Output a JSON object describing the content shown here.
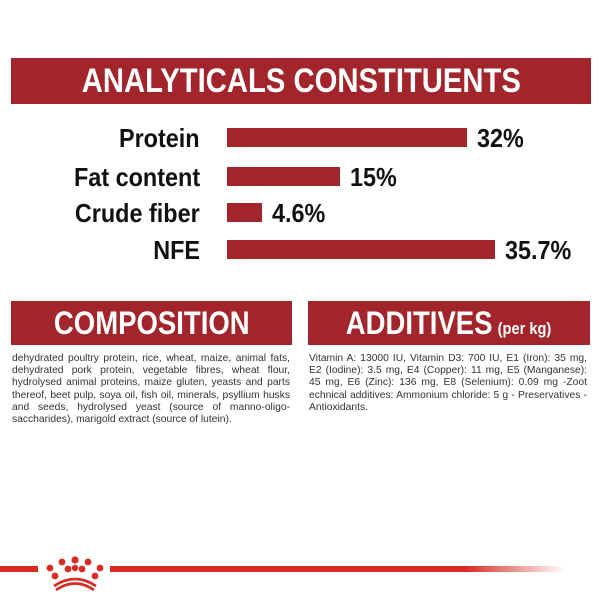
{
  "header": {
    "title": "ANALYTICALS CONSTITUENTS"
  },
  "chart_data": {
    "type": "bar",
    "orientation": "horizontal",
    "title": "ANALYTICALS CONSTITUENTS",
    "categories": [
      "Protein",
      "Fat content",
      "Crude fiber",
      "NFE"
    ],
    "values": [
      32,
      15,
      4.6,
      35.7
    ],
    "value_labels": [
      "32%",
      "15%",
      "4.6%",
      "35.7%"
    ],
    "unit": "%",
    "grid": false,
    "bar_color": "#a2252c"
  },
  "composition": {
    "title": "COMPOSITION",
    "text": "dehydrated poultry protein, rice, wheat, maize, animal fats, dehydrated pork protein, vegetable fibres, wheat flour, hydrolysed animal proteins, maize gluten, yeasts and parts thereof, beet pulp, soya oil, fish oil, minerals, psyllium husks and seeds, hydrolysed yeast (source of manno-oligo-saccharides), marigold extract (source of lutein)."
  },
  "additives": {
    "title": "ADDITIVES",
    "subtitle": "(per kg)",
    "text": "Vitamin A: 13000 IU, Vitamin D3: 700 IU, E1 (Iron): 35 mg, E2 (Iodine): 3.5 mg, E4 (Copper): 11 mg, E5 (Manganese): 45 mg, E6 (Zinc): 136 mg, E8 (Selenium): 0.09 mg -Zoot echnical additives: Ammonium chloride: 5 g - Preservatives - Antioxidants."
  },
  "colors": {
    "banner": "#a2252c",
    "brand_line": "#d92b22"
  },
  "footer": {
    "logo": "crown-logo"
  }
}
